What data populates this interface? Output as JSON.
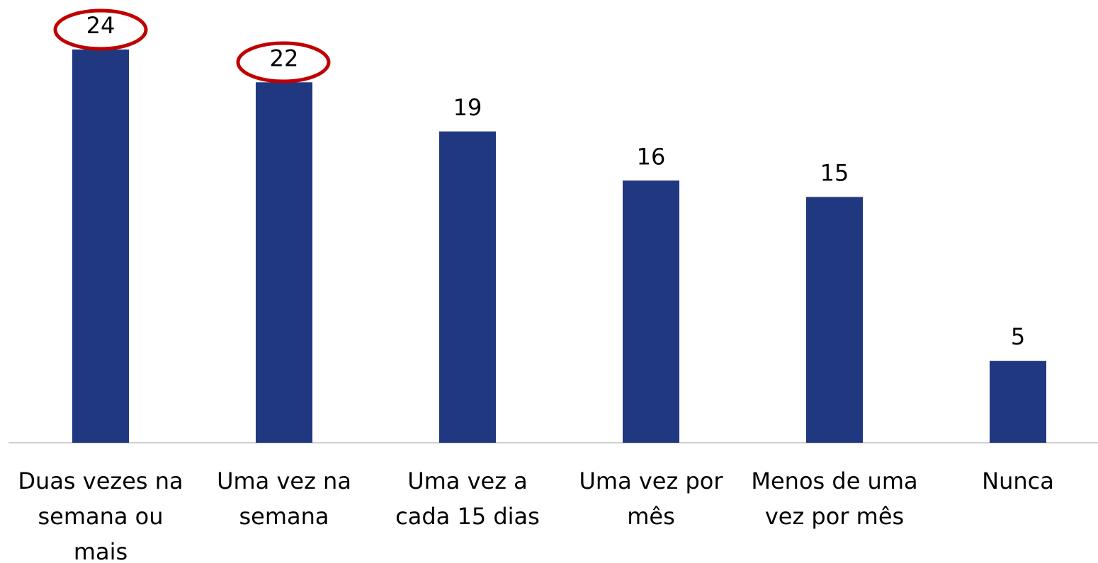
{
  "chart_data": {
    "type": "bar",
    "categories": [
      "Duas vezes na semana ou mais",
      "Uma vez na semana",
      "Uma vez a cada 15 dias",
      "Uma vez por mês",
      "Menos de uma vez por mês",
      "Nunca"
    ],
    "values": [
      24,
      22,
      19,
      16,
      15,
      5
    ],
    "color": "#1f3880"
  }
}
